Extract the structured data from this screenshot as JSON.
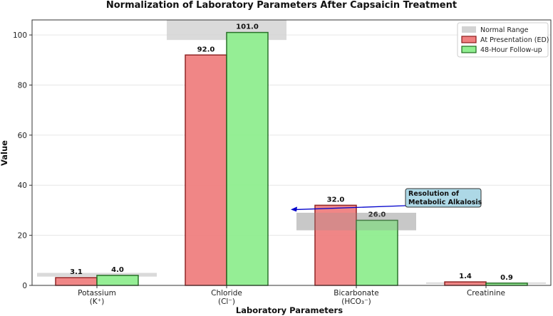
{
  "chart_data": {
    "type": "bar",
    "title": "Normalization of Laboratory Parameters After Capsaicin Treatment",
    "xlabel": "Laboratory Parameters",
    "ylabel": "Value",
    "ylim": [
      0,
      106
    ],
    "yticks": [
      0,
      20,
      40,
      60,
      80,
      100
    ],
    "grid": "horizontal",
    "legend_position": "top-right",
    "categories": [
      {
        "line1": "Potassium",
        "line2": "(K⁺)"
      },
      {
        "line1": "Chloride",
        "line2": "(Cl⁻)"
      },
      {
        "line1": "Bicarbonate",
        "line2": "(HCO₃⁻)"
      },
      {
        "line1": "Creatinine",
        "line2": ""
      }
    ],
    "series": [
      {
        "name": "At Presentation (ED)",
        "values": [
          3.1,
          92.0,
          32.0,
          1.4
        ],
        "labels": [
          "3.1",
          "92.0",
          "32.0",
          "1.4"
        ],
        "color": "#f08080",
        "edge": "#8b1a1a"
      },
      {
        "name": "48-Hour Follow-up",
        "values": [
          4.0,
          101.0,
          26.0,
          0.9
        ],
        "labels": [
          "4.0",
          "101.0",
          "26.0",
          "0.9"
        ],
        "color": "#90ee90",
        "edge": "#1f6b1f"
      }
    ],
    "normal_ranges": {
      "name": "Normal Range",
      "ranges": [
        [
          3.5,
          5.0
        ],
        [
          98,
          106
        ],
        [
          22,
          29
        ],
        [
          0.6,
          1.2
        ]
      ],
      "color": "#d3d3d3"
    },
    "annotation": {
      "text_line1": "Resolution of",
      "text_line2": "Metabolic Alkalosis",
      "target_value": 30,
      "box_color": "#add8e6",
      "arrow_color": "#0000cc"
    }
  }
}
